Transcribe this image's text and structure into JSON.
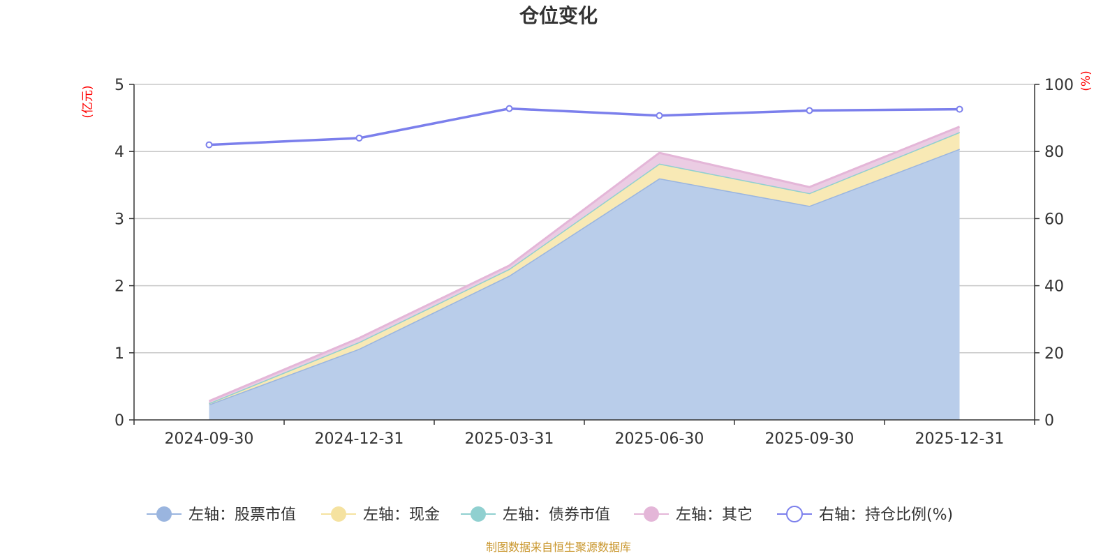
{
  "chart_data": {
    "type": "area",
    "title": "仓位变化",
    "categories": [
      "2024-09-30",
      "2024-12-31",
      "2025-03-31",
      "2025-06-30",
      "2025-09-30",
      "2025-12-31"
    ],
    "left_axis": {
      "unit_label": "(亿元)",
      "ylim": [
        0,
        5
      ],
      "ticks": [
        "0",
        "1",
        "2",
        "3",
        "4",
        "5"
      ]
    },
    "right_axis": {
      "unit_label": "(%)",
      "ylim": [
        0,
        100
      ],
      "ticks": [
        "0",
        "20",
        "40",
        "60",
        "80",
        "100"
      ]
    },
    "stacked_series": [
      {
        "name": "左轴：股票市值",
        "values": [
          0.23,
          1.06,
          2.15,
          3.6,
          3.19,
          4.04
        ],
        "fill": "#b9cdea",
        "stroke": "#9ab5df"
      },
      {
        "name": "左轴：现金",
        "values": [
          0.02,
          0.1,
          0.1,
          0.22,
          0.19,
          0.25
        ],
        "fill": "#f8e9b5",
        "stroke": "#f5e2a0"
      },
      {
        "name": "左轴：债券市值",
        "values": [
          0,
          0,
          0,
          0,
          0,
          0
        ],
        "fill": "#a7dcdc",
        "stroke": "#90d0d0"
      },
      {
        "name": "左轴：其它",
        "values": [
          0.03,
          0.06,
          0.05,
          0.16,
          0.09,
          0.08
        ],
        "fill": "#ebcce3",
        "stroke": "#e4b6d8"
      }
    ],
    "line_series": {
      "name": "右轴：持仓比例(%)",
      "values": [
        82,
        84,
        92.8,
        90.7,
        92.2,
        92.6
      ],
      "color": "#7b7fec"
    },
    "legend": [
      {
        "label": "左轴：股票市值",
        "color": "#9ab5df",
        "style": "filled"
      },
      {
        "label": "左轴：现金",
        "color": "#f5e2a0",
        "style": "filled"
      },
      {
        "label": "左轴：债券市值",
        "color": "#90d0d0",
        "style": "filled"
      },
      {
        "label": "左轴：其它",
        "color": "#e4b6d8",
        "style": "filled"
      },
      {
        "label": "右轴：持仓比例(%)",
        "color": "#7b7fec",
        "style": "hollow"
      }
    ],
    "legend_position": "bottom",
    "grid": true
  },
  "source_note": "制图数据来自恒生聚源数据库"
}
